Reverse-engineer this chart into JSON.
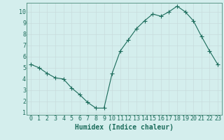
{
  "x": [
    0,
    1,
    2,
    3,
    4,
    5,
    6,
    7,
    8,
    9,
    10,
    11,
    12,
    13,
    14,
    15,
    16,
    17,
    18,
    19,
    20,
    21,
    22,
    23
  ],
  "y": [
    5.3,
    5.0,
    4.5,
    4.1,
    4.0,
    3.2,
    2.6,
    1.9,
    1.4,
    1.4,
    4.5,
    6.5,
    7.5,
    8.5,
    9.2,
    9.8,
    9.6,
    10.0,
    10.5,
    10.0,
    9.2,
    7.8,
    6.5,
    5.3
  ],
  "line_color": "#1a6b5a",
  "marker": "+",
  "marker_size": 4,
  "bg_color": "#d4eeed",
  "grid_color": "#c8dcdc",
  "grid_minor_color": "#e0ecec",
  "xlabel": "Humidex (Indice chaleur)",
  "xlabel_fontsize": 7,
  "tick_fontsize": 6,
  "xlim": [
    -0.5,
    23.5
  ],
  "ylim": [
    0.8,
    10.8
  ],
  "yticks": [
    1,
    2,
    3,
    4,
    5,
    6,
    7,
    8,
    9,
    10
  ],
  "xticks": [
    0,
    1,
    2,
    3,
    4,
    5,
    6,
    7,
    8,
    9,
    10,
    11,
    12,
    13,
    14,
    15,
    16,
    17,
    18,
    19,
    20,
    21,
    22,
    23
  ],
  "axis_color": "#1a6b5a",
  "spine_color": "#4a8a7a",
  "linewidth": 0.8
}
